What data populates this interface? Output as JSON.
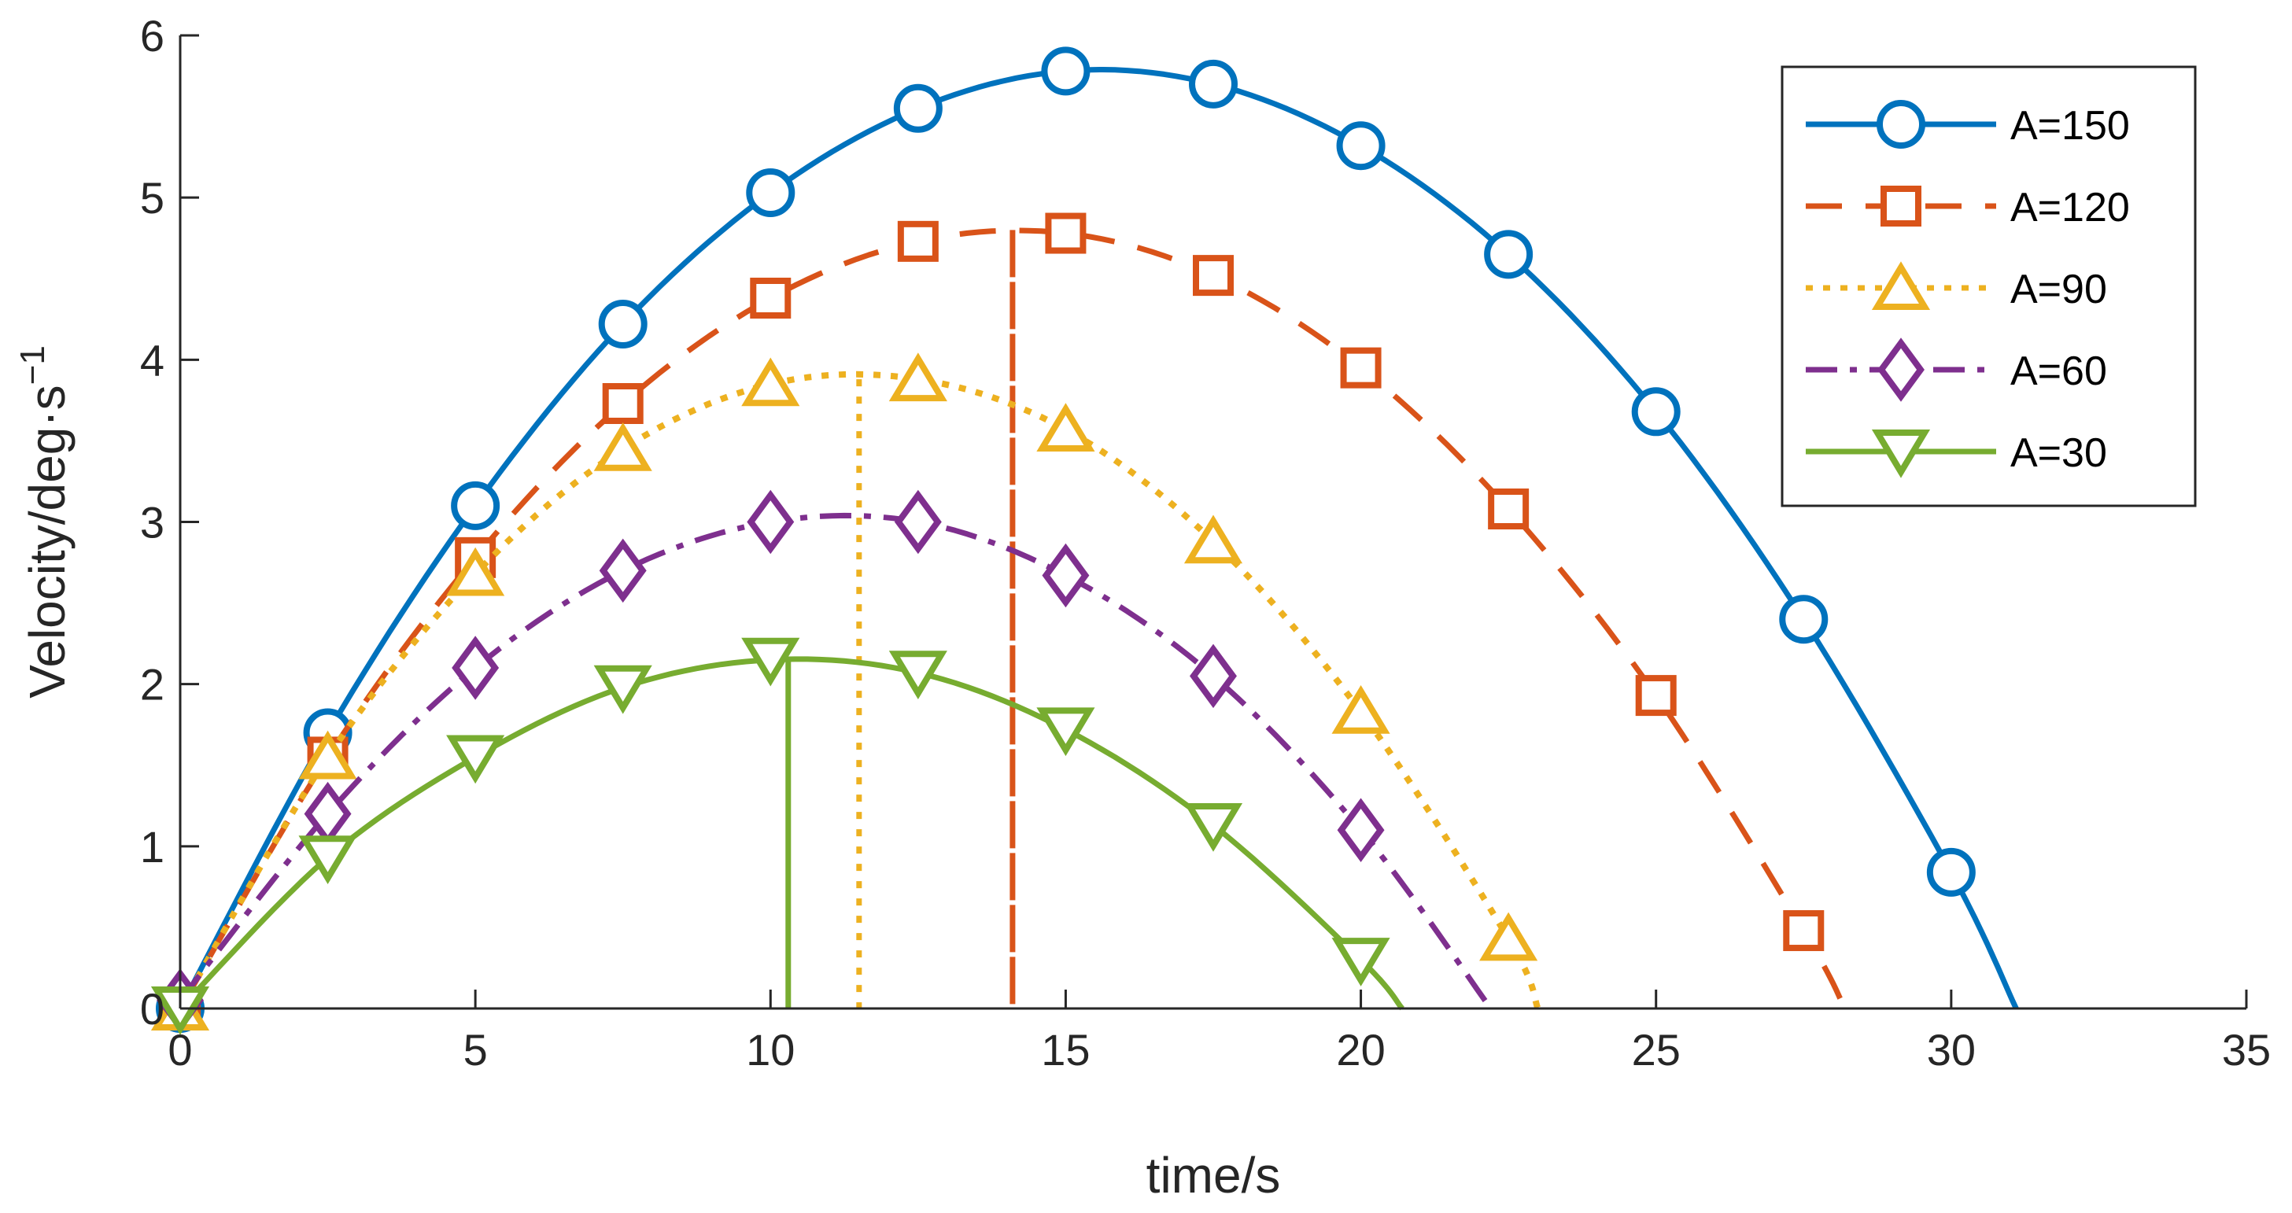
{
  "chart_data": {
    "type": "line",
    "title": "",
    "xlabel": "time/s",
    "ylabel_main": "Velocity/deg·s",
    "ylabel_sup": "−1",
    "xlim": [
      0,
      35
    ],
    "ylim": [
      0,
      6
    ],
    "xticks": [
      0,
      5,
      10,
      15,
      20,
      25,
      30,
      35
    ],
    "yticks": [
      0,
      1,
      2,
      3,
      4,
      5,
      6
    ],
    "grid": false,
    "legend_position": "top-right",
    "series": [
      {
        "name": "A=150",
        "color": "#0072BD",
        "style": "solid",
        "marker": "circle",
        "x": [
          0,
          2.5,
          5,
          7.5,
          10,
          12.5,
          15,
          17.5,
          20,
          22.5,
          25,
          27.5,
          30
        ],
        "y": [
          0,
          1.7,
          3.1,
          4.22,
          5.03,
          5.55,
          5.78,
          5.7,
          5.32,
          4.65,
          3.68,
          2.4,
          0.84
        ],
        "end_x": 31.1,
        "peak_x": 15.6,
        "peak_y": 5.79
      },
      {
        "name": "A=120",
        "color": "#D95319",
        "style": "dashed",
        "marker": "square",
        "x": [
          0,
          2.5,
          5,
          7.5,
          10,
          12.5,
          15,
          17.5,
          20,
          22.5,
          25,
          27.5
        ],
        "y": [
          0,
          1.55,
          2.78,
          3.73,
          4.38,
          4.73,
          4.78,
          4.52,
          3.95,
          3.08,
          1.93,
          0.48
        ],
        "end_x": 28.2,
        "peak_x": 14.1,
        "peak_y": 4.8,
        "vline_x": 14.1
      },
      {
        "name": "A=90",
        "color": "#EDB120",
        "style": "dotted",
        "marker": "triangle-up",
        "x": [
          0,
          2.5,
          5,
          7.5,
          10,
          12.5,
          15,
          17.5,
          20,
          22.5
        ],
        "y": [
          0,
          1.55,
          2.68,
          3.45,
          3.85,
          3.88,
          3.57,
          2.88,
          1.83,
          0.43
        ],
        "end_x": 23.0,
        "peak_x": 11.5,
        "peak_y": 3.88,
        "vline_x": 11.5
      },
      {
        "name": "A=60",
        "color": "#7E2F8E",
        "style": "dashdot",
        "marker": "diamond",
        "x": [
          0,
          2.5,
          5,
          7.5,
          10,
          12.5,
          15,
          17.5,
          20
        ],
        "y": [
          0.05,
          1.2,
          2.1,
          2.7,
          3.0,
          3.0,
          2.67,
          2.05,
          1.1
        ],
        "end_x": 22.2,
        "peak_x": 11.2,
        "peak_y": 3.03
      },
      {
        "name": "A=30",
        "color": "#77AC30",
        "style": "solid",
        "marker": "triangle-down",
        "x": [
          0,
          2.5,
          5,
          7.5,
          10,
          12.5,
          15,
          17.5,
          20
        ],
        "y": [
          0,
          0.93,
          1.55,
          1.98,
          2.15,
          2.07,
          1.72,
          1.13,
          0.3
        ],
        "end_x": 20.7,
        "peak_x": 10.3,
        "peak_y": 2.16,
        "vline_x": 10.3
      }
    ]
  }
}
